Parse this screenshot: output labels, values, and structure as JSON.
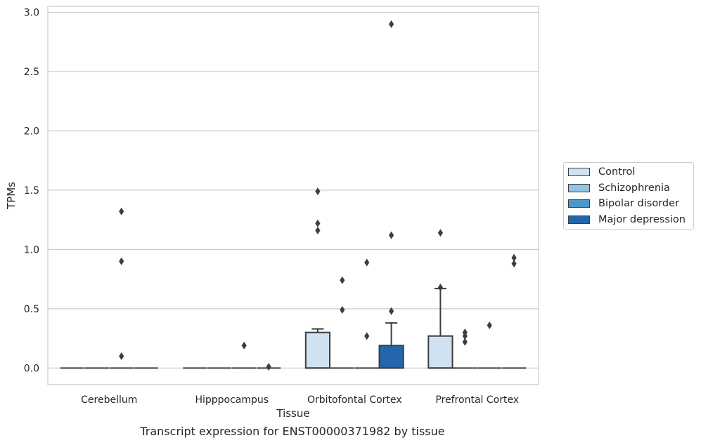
{
  "caption": "Transcript expression for ENST00000371982 by tissue",
  "chart_data": {
    "type": "box",
    "xlabel": "Tissue",
    "ylabel": "TPMs",
    "ylim": [
      -0.14,
      3.05
    ],
    "yticks": [
      "0.0",
      "0.5",
      "1.0",
      "1.5",
      "2.0",
      "2.5",
      "3.0"
    ],
    "grid": "horizontal",
    "legend_position": "right",
    "categories": [
      "Cerebellum",
      "Hipppocampus",
      "Orbitofontal Cortex",
      "Prefrontal Cortex"
    ],
    "series": [
      {
        "name": "Control",
        "color": "#d0e1f2",
        "boxes": [
          {
            "q1": 0,
            "median": 0,
            "q3": 0,
            "whisker_low": 0,
            "whisker_high": 0,
            "outliers": []
          },
          {
            "q1": 0,
            "median": 0,
            "q3": 0,
            "whisker_low": 0,
            "whisker_high": 0,
            "outliers": []
          },
          {
            "q1": 0,
            "median": 0,
            "q3": 0.3,
            "whisker_low": 0,
            "whisker_high": 0.33,
            "outliers": [
              1.49,
              1.22,
              1.16
            ]
          },
          {
            "q1": 0,
            "median": 0,
            "q3": 0.27,
            "whisker_low": 0,
            "whisker_high": 0.67,
            "outliers": [
              1.14,
              0.68
            ]
          }
        ]
      },
      {
        "name": "Schizophrenia",
        "color": "#94c4df",
        "boxes": [
          {
            "q1": 0,
            "median": 0,
            "q3": 0,
            "whisker_low": 0,
            "whisker_high": 0,
            "outliers": []
          },
          {
            "q1": 0,
            "median": 0,
            "q3": 0,
            "whisker_low": 0,
            "whisker_high": 0,
            "outliers": []
          },
          {
            "q1": 0,
            "median": 0,
            "q3": 0,
            "whisker_low": 0,
            "whisker_high": 0,
            "outliers": [
              0.74,
              0.49
            ]
          },
          {
            "q1": 0,
            "median": 0,
            "q3": 0,
            "whisker_low": 0,
            "whisker_high": 0,
            "outliers": [
              0.3,
              0.27,
              0.22
            ]
          }
        ]
      },
      {
        "name": "Bipolar disorder",
        "color": "#4a98c9",
        "boxes": [
          {
            "q1": 0,
            "median": 0,
            "q3": 0,
            "whisker_low": 0,
            "whisker_high": 0,
            "outliers": [
              1.32,
              0.9,
              0.1
            ]
          },
          {
            "q1": 0,
            "median": 0,
            "q3": 0,
            "whisker_low": 0,
            "whisker_high": 0,
            "outliers": [
              0.19
            ]
          },
          {
            "q1": 0,
            "median": 0,
            "q3": 0,
            "whisker_low": 0,
            "whisker_high": 0,
            "outliers": [
              0.89,
              0.27
            ]
          },
          {
            "q1": 0,
            "median": 0,
            "q3": 0,
            "whisker_low": 0,
            "whisker_high": 0,
            "outliers": [
              0.36
            ]
          }
        ]
      },
      {
        "name": "Major depression",
        "color": "#2366ab",
        "boxes": [
          {
            "q1": 0,
            "median": 0,
            "q3": 0,
            "whisker_low": 0,
            "whisker_high": 0,
            "outliers": []
          },
          {
            "q1": 0,
            "median": 0,
            "q3": 0,
            "whisker_low": 0,
            "whisker_high": 0,
            "outliers": [
              0.01
            ]
          },
          {
            "q1": 0,
            "median": 0,
            "q3": 0.19,
            "whisker_low": 0,
            "whisker_high": 0.38,
            "outliers": [
              2.9,
              1.12,
              0.48
            ]
          },
          {
            "q1": 0,
            "median": 0,
            "q3": 0,
            "whisker_low": 0,
            "whisker_high": 0,
            "outliers": [
              0.93,
              0.88
            ]
          }
        ]
      }
    ]
  }
}
